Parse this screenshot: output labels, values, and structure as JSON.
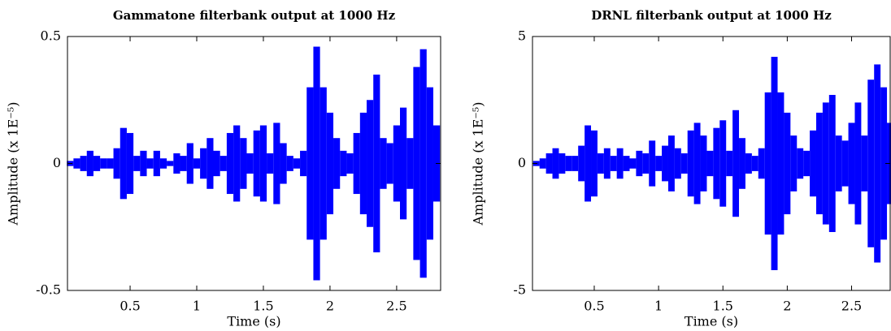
{
  "chart_data": [
    {
      "type": "waveform",
      "title": "Gammatone filterbank output at 1000 Hz",
      "xlabel": "Time (s)",
      "ylabel": "Amplitude (x 1E⁻⁵)",
      "color": "#0000ff",
      "xlim": [
        0.03,
        2.83
      ],
      "xticks": [
        0.5,
        1,
        1.5,
        2,
        2.5
      ],
      "ylim": [
        -0.5,
        0.5
      ],
      "yticks": [
        -0.5,
        0,
        0.5
      ],
      "x": [
        0.05,
        0.1,
        0.15,
        0.2,
        0.25,
        0.3,
        0.35,
        0.4,
        0.45,
        0.5,
        0.55,
        0.6,
        0.65,
        0.7,
        0.75,
        0.8,
        0.85,
        0.9,
        0.95,
        1.0,
        1.05,
        1.1,
        1.15,
        1.2,
        1.25,
        1.3,
        1.35,
        1.4,
        1.45,
        1.5,
        1.55,
        1.6,
        1.65,
        1.7,
        1.75,
        1.8,
        1.85,
        1.9,
        1.95,
        2.0,
        2.05,
        2.1,
        2.15,
        2.2,
        2.25,
        2.3,
        2.35,
        2.4,
        2.45,
        2.5,
        2.55,
        2.6,
        2.65,
        2.7,
        2.75,
        2.8
      ],
      "values": [
        0.01,
        0.02,
        0.03,
        0.05,
        0.03,
        0.02,
        0.02,
        0.06,
        0.14,
        0.12,
        0.03,
        0.05,
        0.02,
        0.05,
        0.02,
        0.01,
        0.04,
        0.03,
        0.08,
        0.02,
        0.06,
        0.1,
        0.05,
        0.03,
        0.12,
        0.15,
        0.1,
        0.04,
        0.13,
        0.15,
        0.04,
        0.16,
        0.08,
        0.03,
        0.02,
        0.05,
        0.3,
        0.46,
        0.3,
        0.2,
        0.1,
        0.05,
        0.04,
        0.12,
        0.2,
        0.25,
        0.35,
        0.1,
        0.08,
        0.15,
        0.22,
        0.1,
        0.38,
        0.45,
        0.3,
        0.15
      ]
    },
    {
      "type": "waveform",
      "title": "DRNL filterbank output at 1000 Hz",
      "xlabel": "Time (s)",
      "ylabel": "Amplitude (x 1E⁻⁵)",
      "color": "#0000ff",
      "xlim": [
        0.02,
        2.8
      ],
      "xticks": [
        0.5,
        1,
        1.5,
        2,
        2.5
      ],
      "ylim": [
        -5,
        5
      ],
      "yticks": [
        -5,
        0,
        5
      ],
      "x": [
        0.05,
        0.1,
        0.15,
        0.2,
        0.25,
        0.3,
        0.35,
        0.4,
        0.45,
        0.5,
        0.55,
        0.6,
        0.65,
        0.7,
        0.75,
        0.8,
        0.85,
        0.9,
        0.95,
        1.0,
        1.05,
        1.1,
        1.15,
        1.2,
        1.25,
        1.3,
        1.35,
        1.4,
        1.45,
        1.5,
        1.55,
        1.6,
        1.65,
        1.7,
        1.75,
        1.8,
        1.85,
        1.9,
        1.95,
        2.0,
        2.05,
        2.1,
        2.15,
        2.2,
        2.25,
        2.3,
        2.35,
        2.4,
        2.45,
        2.5,
        2.55,
        2.6,
        2.65,
        2.7,
        2.75,
        2.8
      ],
      "values": [
        0.1,
        0.2,
        0.4,
        0.6,
        0.4,
        0.3,
        0.3,
        0.7,
        1.5,
        1.3,
        0.4,
        0.6,
        0.3,
        0.6,
        0.3,
        0.2,
        0.5,
        0.4,
        0.9,
        0.3,
        0.7,
        1.1,
        0.6,
        0.4,
        1.3,
        1.6,
        1.1,
        0.5,
        1.4,
        1.7,
        0.5,
        2.1,
        1.0,
        0.4,
        0.3,
        0.6,
        2.8,
        4.2,
        2.8,
        2.0,
        1.1,
        0.6,
        0.5,
        1.3,
        2.0,
        2.4,
        2.7,
        1.1,
        0.9,
        1.6,
        2.4,
        1.1,
        3.3,
        3.9,
        3.0,
        1.6
      ]
    }
  ]
}
